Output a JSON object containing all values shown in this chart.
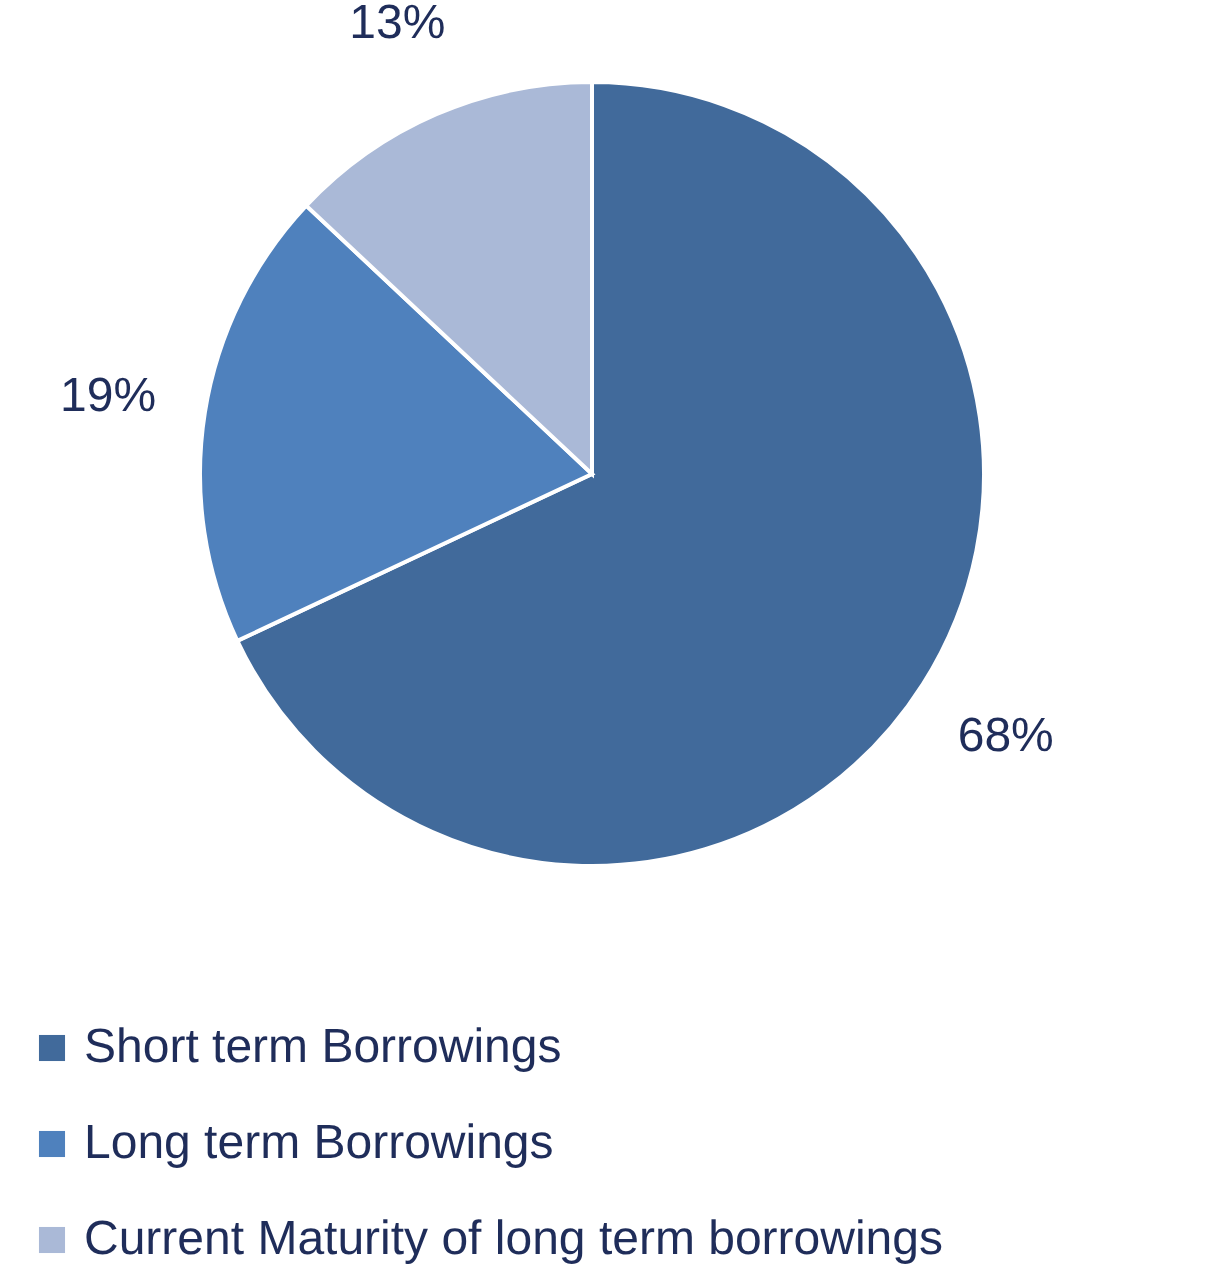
{
  "chart_data": {
    "type": "pie",
    "categories": [
      "Short term Borrowings",
      "Long term Borrowings",
      "Current Maturity of long term borrowings"
    ],
    "values": [
      68,
      19,
      13
    ],
    "colors": [
      "#416a9b",
      "#4f81bd",
      "#aab9d7"
    ],
    "value_labels": [
      "68%",
      "19%",
      "13%"
    ],
    "legend": "bottom"
  }
}
